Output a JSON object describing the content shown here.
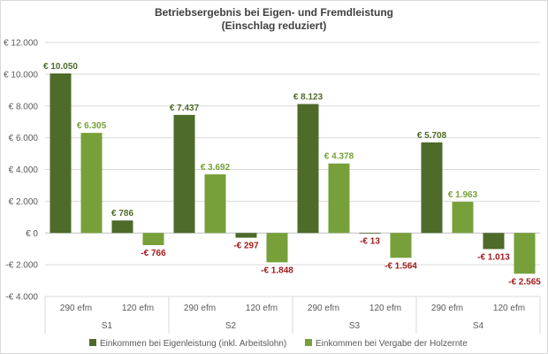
{
  "chart_data": {
    "type": "bar",
    "title": "Betriebsergebnis bei Eigen- und Fremdleistung",
    "subtitle": "(Einschlag reduziert)",
    "xlabel": "",
    "ylabel": "",
    "ylim": [
      -4000,
      12000
    ],
    "y_ticks": [
      -4000,
      -2000,
      0,
      2000,
      4000,
      6000,
      8000,
      10000,
      12000
    ],
    "y_tick_labels": [
      "-€ 4.000",
      "-€ 2.000",
      "€ 0",
      "€ 2.000",
      "€ 4.000",
      "€ 6.000",
      "€ 8.000",
      "€ 10.000",
      "€ 12.000"
    ],
    "grid": true,
    "legend_position": "bottom",
    "groups": [
      "S1",
      "S2",
      "S3",
      "S4"
    ],
    "categories": [
      "290 efm",
      "120 efm",
      "290 efm",
      "120 efm",
      "290 efm",
      "120 efm",
      "290 efm",
      "120 efm"
    ],
    "series": [
      {
        "name": "Einkommen bei Eigenleistung (inkl. Arbeitslohn)",
        "color": "#4e6b2a",
        "values": [
          10050,
          786,
          7437,
          -297,
          8123,
          -13,
          5708,
          -1013
        ],
        "labels": [
          "€ 10.050",
          "€ 786",
          "€ 7.437",
          "-€ 297",
          "€ 8.123",
          "-€ 13",
          "€ 5.708",
          "-€ 1.013"
        ]
      },
      {
        "name": "Einkommen bei Vergabe der Holzernte",
        "color": "#77a03a",
        "values": [
          6305,
          -766,
          3692,
          -1848,
          4378,
          -1564,
          1963,
          -2565
        ],
        "labels": [
          "€ 6.305",
          "-€ 766",
          "€ 3.692",
          "-€ 1.848",
          "€ 4.378",
          "-€ 1.564",
          "€ 1.963",
          "-€ 2.565"
        ]
      }
    ],
    "label_colors": {
      "dark_positive": "#4e6b2a",
      "light_positive": "#77a03a",
      "negative": "#a01c1c"
    }
  }
}
